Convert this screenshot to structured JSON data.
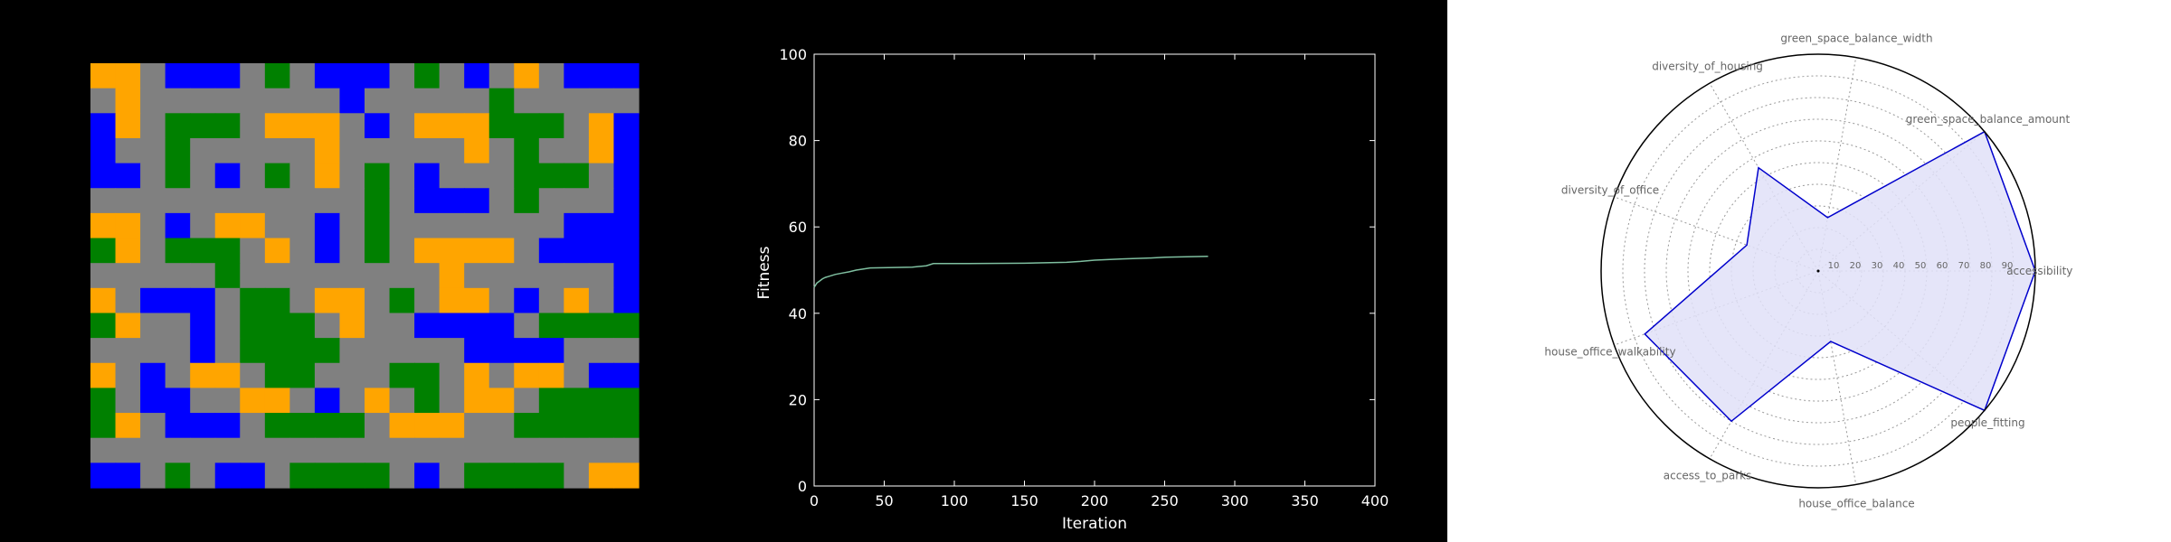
{
  "colors": {
    "page_background": "#000000",
    "road": "#808080",
    "housing": "#0000ff",
    "office": "#ffa500",
    "green_space": "#008000",
    "fitness_line": "#7fbfa0",
    "radar_line": "#0000cc",
    "radar_fill": "#e0e0f8"
  },
  "urban_grid": {
    "rows": 17,
    "cols": 22,
    "legend": {
      "G": "road",
      "B": "housing",
      "O": "office",
      "R": "green_space"
    },
    "cells": [
      "OOGBBBGRGBBBGRGBGOGBBB",
      "GOGGGGGGGGBGGGGGRGGGGG",
      "BOGRRRGOOOGBGOOORRRGOB",
      "BGGRGGGGGOGGGGGOGRGGOB",
      "BBGRGBGRGOGRGBGGGRRRGB",
      "GGGGGGGGGGGRGBBBGRGGGB",
      "OOGBGOOGGBGRGGGGGGGBBB",
      "ROGRRRGOGBGRGOOOOGBBBB",
      "GGGGGRGGGGGGGGOGGGGGGB",
      "OGBBBGRRGOOGRGOOGBGOGB",
      "ROGGBGRRRGOGGBBBBGRRRR",
      "GGGGBGRRRRGGGGGBBBBGGG",
      "OGBGOOGRRGGGRRGOGOOGBB",
      "RGBBGGOOGBGOGRGOOGRRRR",
      "ROGBBBGRRRRGOOOGGRRRRR",
      "GGGGGGGGGGGGGGGGGGGGGG",
      "BBGRGBBGRRRRGBGRRRRGOO"
    ]
  },
  "chart_data": [
    {
      "type": "line",
      "title": "",
      "xlabel": "Iteration",
      "ylabel": "Fitness",
      "xlim": [
        0,
        400
      ],
      "ylim": [
        0,
        100
      ],
      "xticks": [
        0,
        50,
        100,
        150,
        200,
        250,
        300,
        350,
        400
      ],
      "yticks": [
        0,
        20,
        40,
        60,
        80,
        100
      ],
      "grid": false,
      "series": [
        {
          "x": [
            0,
            2,
            4,
            6,
            8,
            10,
            15,
            20,
            25,
            30,
            40,
            70,
            80,
            85,
            110,
            150,
            180,
            190,
            200,
            220,
            240,
            250,
            281
          ],
          "y": [
            46,
            47,
            47.5,
            48,
            48.3,
            48.5,
            49,
            49.3,
            49.6,
            50,
            50.5,
            50.7,
            51,
            51.5,
            51.5,
            51.6,
            51.8,
            52,
            52.3,
            52.6,
            52.8,
            53,
            53.2
          ]
        }
      ]
    },
    {
      "type": "radar",
      "title": "",
      "rlim": [
        0,
        100
      ],
      "rticks": [
        10,
        20,
        30,
        40,
        50,
        60,
        70,
        80,
        90
      ],
      "grid": true,
      "axes": [
        "accessibility",
        "green_space_balance_amount",
        "green_space_balance_width",
        "diversity_of_housing",
        "diversity_of_office",
        "house_office_walkability",
        "access_to_parks",
        "house_office_balance",
        "people_fitting"
      ],
      "values": [
        100,
        100,
        25,
        55,
        35,
        85,
        80,
        33,
        100
      ]
    }
  ]
}
